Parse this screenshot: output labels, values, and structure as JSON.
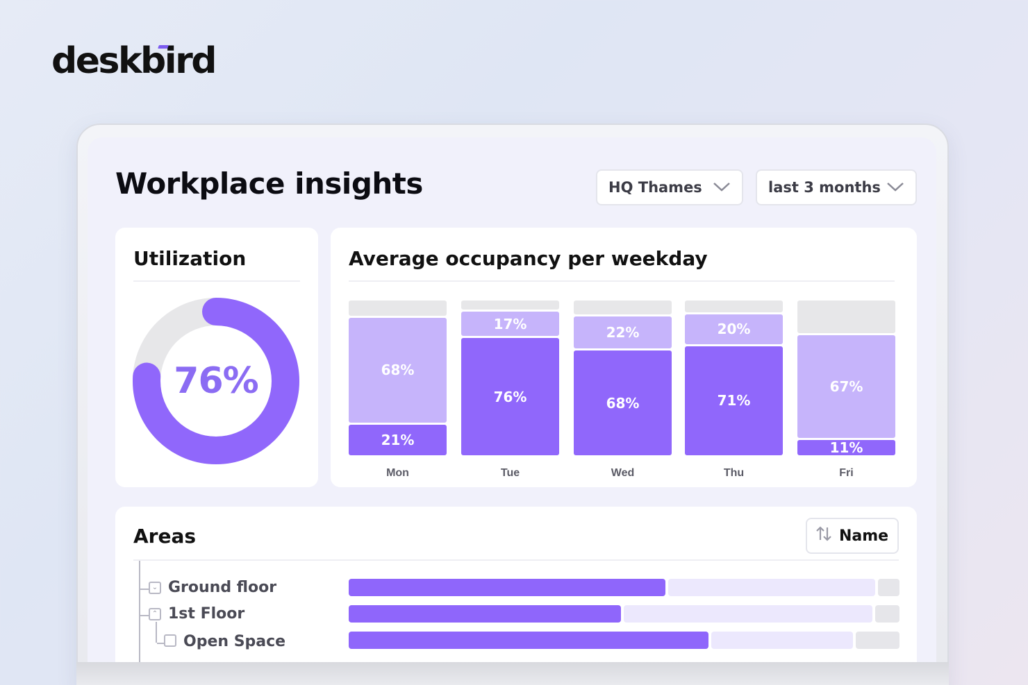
{
  "brand": {
    "name": "deskbird",
    "accent": "#7c5cf0"
  },
  "page": {
    "title": "Workplace insights"
  },
  "filters": {
    "location": {
      "value": "HQ Thames",
      "icon": "chevron-down-icon"
    },
    "range": {
      "value": "last 3 months",
      "icon": "chevron-down-icon"
    }
  },
  "utilization": {
    "title": "Utilization",
    "value": "76%",
    "percent": 76
  },
  "occupancy": {
    "title": "Average occupancy per weekday",
    "days": [
      {
        "label": "Mon",
        "top": "68%",
        "bottom": "21%"
      },
      {
        "label": "Tue",
        "top": "17%",
        "bottom": "76%"
      },
      {
        "label": "Wed",
        "top": "22%",
        "bottom": "68%"
      },
      {
        "label": "Thu",
        "top": "20%",
        "bottom": "71%"
      },
      {
        "label": "Fri",
        "top": "67%",
        "bottom": "11%"
      }
    ]
  },
  "chart_data": {
    "type": "bar",
    "title": "Average occupancy per weekday",
    "categories": [
      "Mon",
      "Tue",
      "Wed",
      "Thu",
      "Fri"
    ],
    "series": [
      {
        "values": [
          21,
          76,
          68,
          71,
          11
        ],
        "color": "#9067fb"
      },
      {
        "values": [
          68,
          17,
          22,
          20,
          67
        ],
        "color": "#c6b4fb"
      }
    ],
    "stacked": true,
    "ylim": [
      0,
      100
    ]
  },
  "areas": {
    "title": "Areas",
    "sort": {
      "label": "Name",
      "icon": "sort-icon"
    },
    "rows": [
      {
        "name": "Ground floor",
        "toggle": "collapse"
      },
      {
        "name": "1st Floor",
        "toggle": "expand"
      },
      {
        "name": "Open Space",
        "toggle": ""
      }
    ]
  },
  "colors": {
    "primary": "#9067fb",
    "light": "#c6b4fb",
    "empty": "#e7e7e9"
  }
}
